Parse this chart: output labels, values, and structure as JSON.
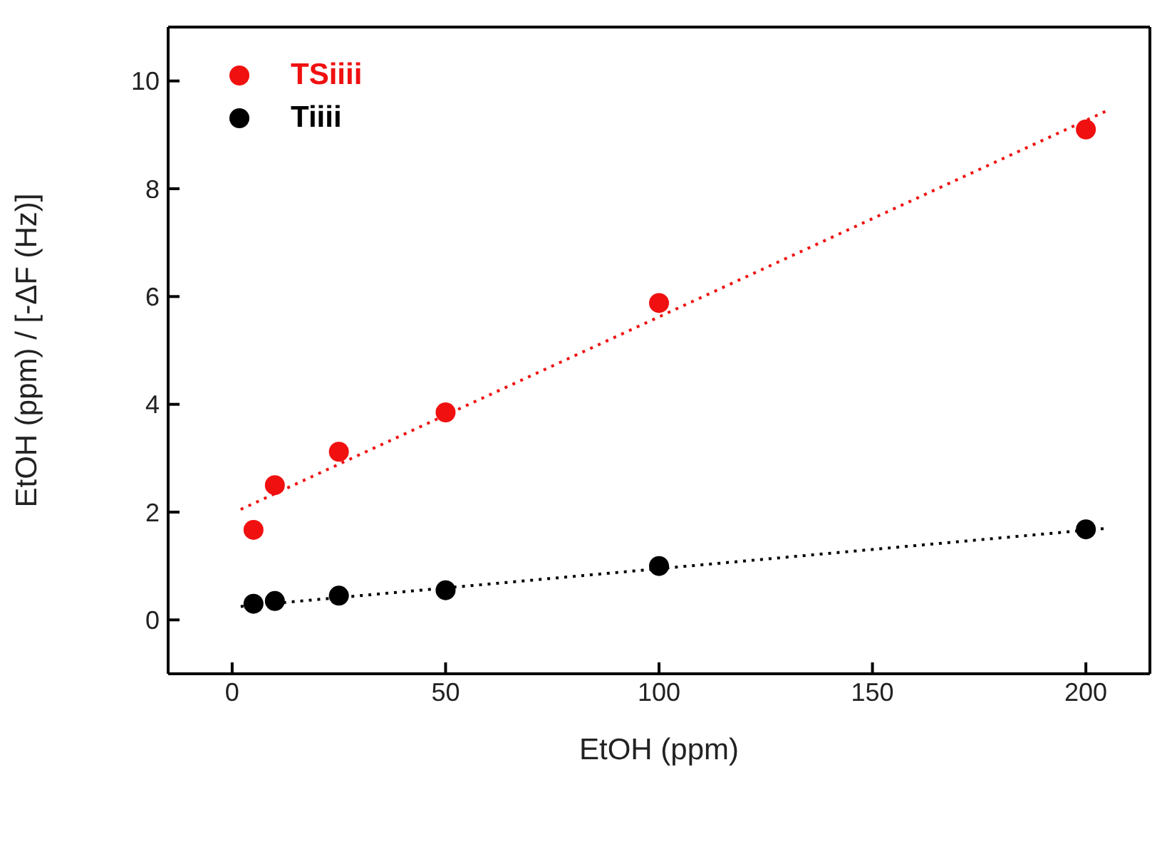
{
  "chart_data": {
    "type": "scatter",
    "xlabel": "EtOH (ppm)",
    "ylabel": "EtOH (ppm) / [-ΔF (Hz)]",
    "xlim": [
      -15,
      215
    ],
    "xticks": [
      0,
      50,
      100,
      150,
      200
    ],
    "ylim": [
      -1,
      11
    ],
    "yticks": [
      0,
      2,
      4,
      6,
      8,
      10
    ],
    "legend": "top left",
    "series": [
      {
        "name": "TSiiii",
        "marker": "circle",
        "color": "#f01010",
        "x": [
          5,
          10,
          25,
          50,
          100,
          200
        ],
        "values": [
          1.67,
          2.5,
          3.12,
          3.85,
          5.88,
          9.1
        ]
      },
      {
        "name": "Tiiii",
        "marker": "circle",
        "color": "#000000",
        "x": [
          5,
          10,
          25,
          50,
          100,
          200
        ],
        "values": [
          0.3,
          0.35,
          0.45,
          0.55,
          1.0,
          1.68
        ]
      },
      {
        "type": "line",
        "color": "#f01010",
        "line_style": "dotted",
        "x": [
          2,
          205
        ],
        "values": [
          2.05,
          9.45
        ]
      },
      {
        "type": "line",
        "color": "#000000",
        "line_style": "dotted",
        "x": [
          2,
          205
        ],
        "values": [
          0.25,
          1.7
        ]
      }
    ]
  }
}
